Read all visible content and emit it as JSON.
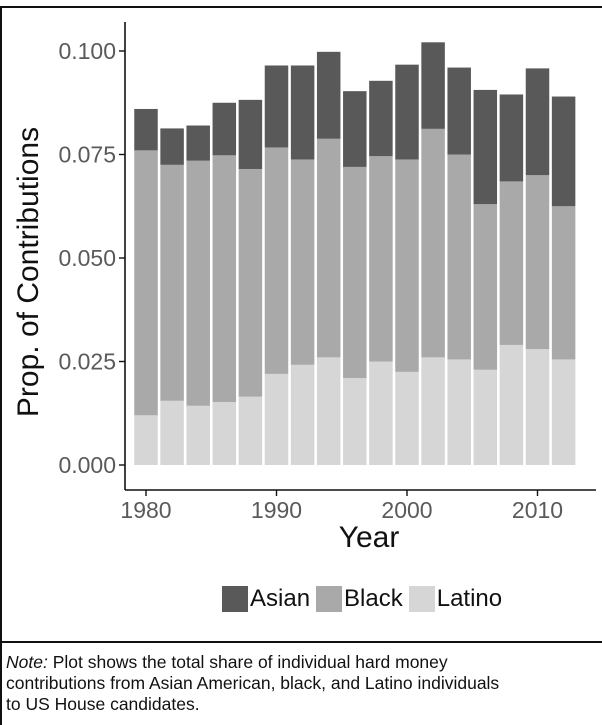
{
  "chart_data": {
    "type": "bar",
    "stacked": true,
    "xlabel": "Year",
    "ylabel": "Prop. of Contributions",
    "ylim": [
      0,
      0.1
    ],
    "xlim": [
      1979,
      2013
    ],
    "x_ticks": [
      1980,
      1990,
      2000,
      2010
    ],
    "y_ticks": [
      "0.000",
      "0.025",
      "0.050",
      "0.075",
      "0.100"
    ],
    "y_tick_values": [
      0,
      0.025,
      0.05,
      0.075,
      0.1
    ],
    "x": [
      1980,
      1982,
      1984,
      1986,
      1988,
      1990,
      1992,
      1994,
      1996,
      1998,
      2000,
      2002,
      2004,
      2006,
      2008,
      2010,
      2012
    ],
    "series": [
      {
        "name": "Latino",
        "color": "#d6d6d6",
        "values": [
          0.012,
          0.0155,
          0.0143,
          0.0152,
          0.0165,
          0.022,
          0.0242,
          0.026,
          0.021,
          0.025,
          0.0225,
          0.026,
          0.0255,
          0.023,
          0.029,
          0.028,
          0.0255
        ]
      },
      {
        "name": "Black",
        "color": "#a9a9a9",
        "values": [
          0.064,
          0.057,
          0.0592,
          0.0596,
          0.055,
          0.0547,
          0.0496,
          0.0528,
          0.051,
          0.0496,
          0.0513,
          0.0552,
          0.0495,
          0.04,
          0.0395,
          0.042,
          0.037
        ]
      },
      {
        "name": "Asian",
        "color": "#595959",
        "values": [
          0.01,
          0.0088,
          0.0085,
          0.0127,
          0.0167,
          0.0198,
          0.0227,
          0.021,
          0.0183,
          0.0182,
          0.0229,
          0.0209,
          0.021,
          0.0276,
          0.021,
          0.0258,
          0.0265
        ]
      }
    ],
    "legend": {
      "position": "bottom",
      "order": [
        "Asian",
        "Black",
        "Latino"
      ]
    },
    "grid": false
  },
  "note": {
    "prefix": "Note:",
    "line1": " Plot shows the total share of individual hard money",
    "line2": "contributions from Asian American, black, and Latino individuals",
    "line3": "to US House candidates."
  }
}
